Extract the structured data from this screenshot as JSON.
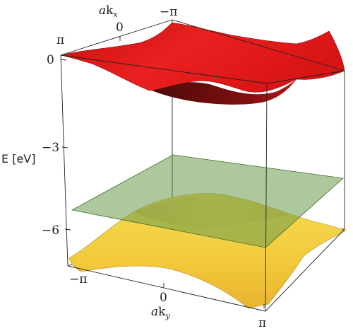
{
  "chart_data": {
    "type": "surface3d",
    "title": "",
    "xlabel": {
      "prefix": "a",
      "main": "k",
      "sub": "x"
    },
    "ylabel": {
      "prefix": "a",
      "main": "k",
      "sub": "y"
    },
    "zlabel": "E [eV]",
    "x_ticks": [
      "π",
      "0",
      "−π"
    ],
    "y_ticks": [
      "−π",
      "0",
      "π"
    ],
    "z_ticks": [
      "0",
      "−3",
      "−6"
    ],
    "z_range": [
      -7.5,
      0.8
    ],
    "surfaces": [
      {
        "name": "upper band",
        "color": "#e01818",
        "shape": "dispersive",
        "z_min": -1.2,
        "z_max": 0.6
      },
      {
        "name": "flat band",
        "color": "#6a9a4a",
        "shape": "flat",
        "z": -5.0
      },
      {
        "name": "lower band",
        "color": "#f0c83a",
        "shape": "dispersive",
        "z_min": -7.4,
        "z_max": -4.7
      }
    ]
  }
}
